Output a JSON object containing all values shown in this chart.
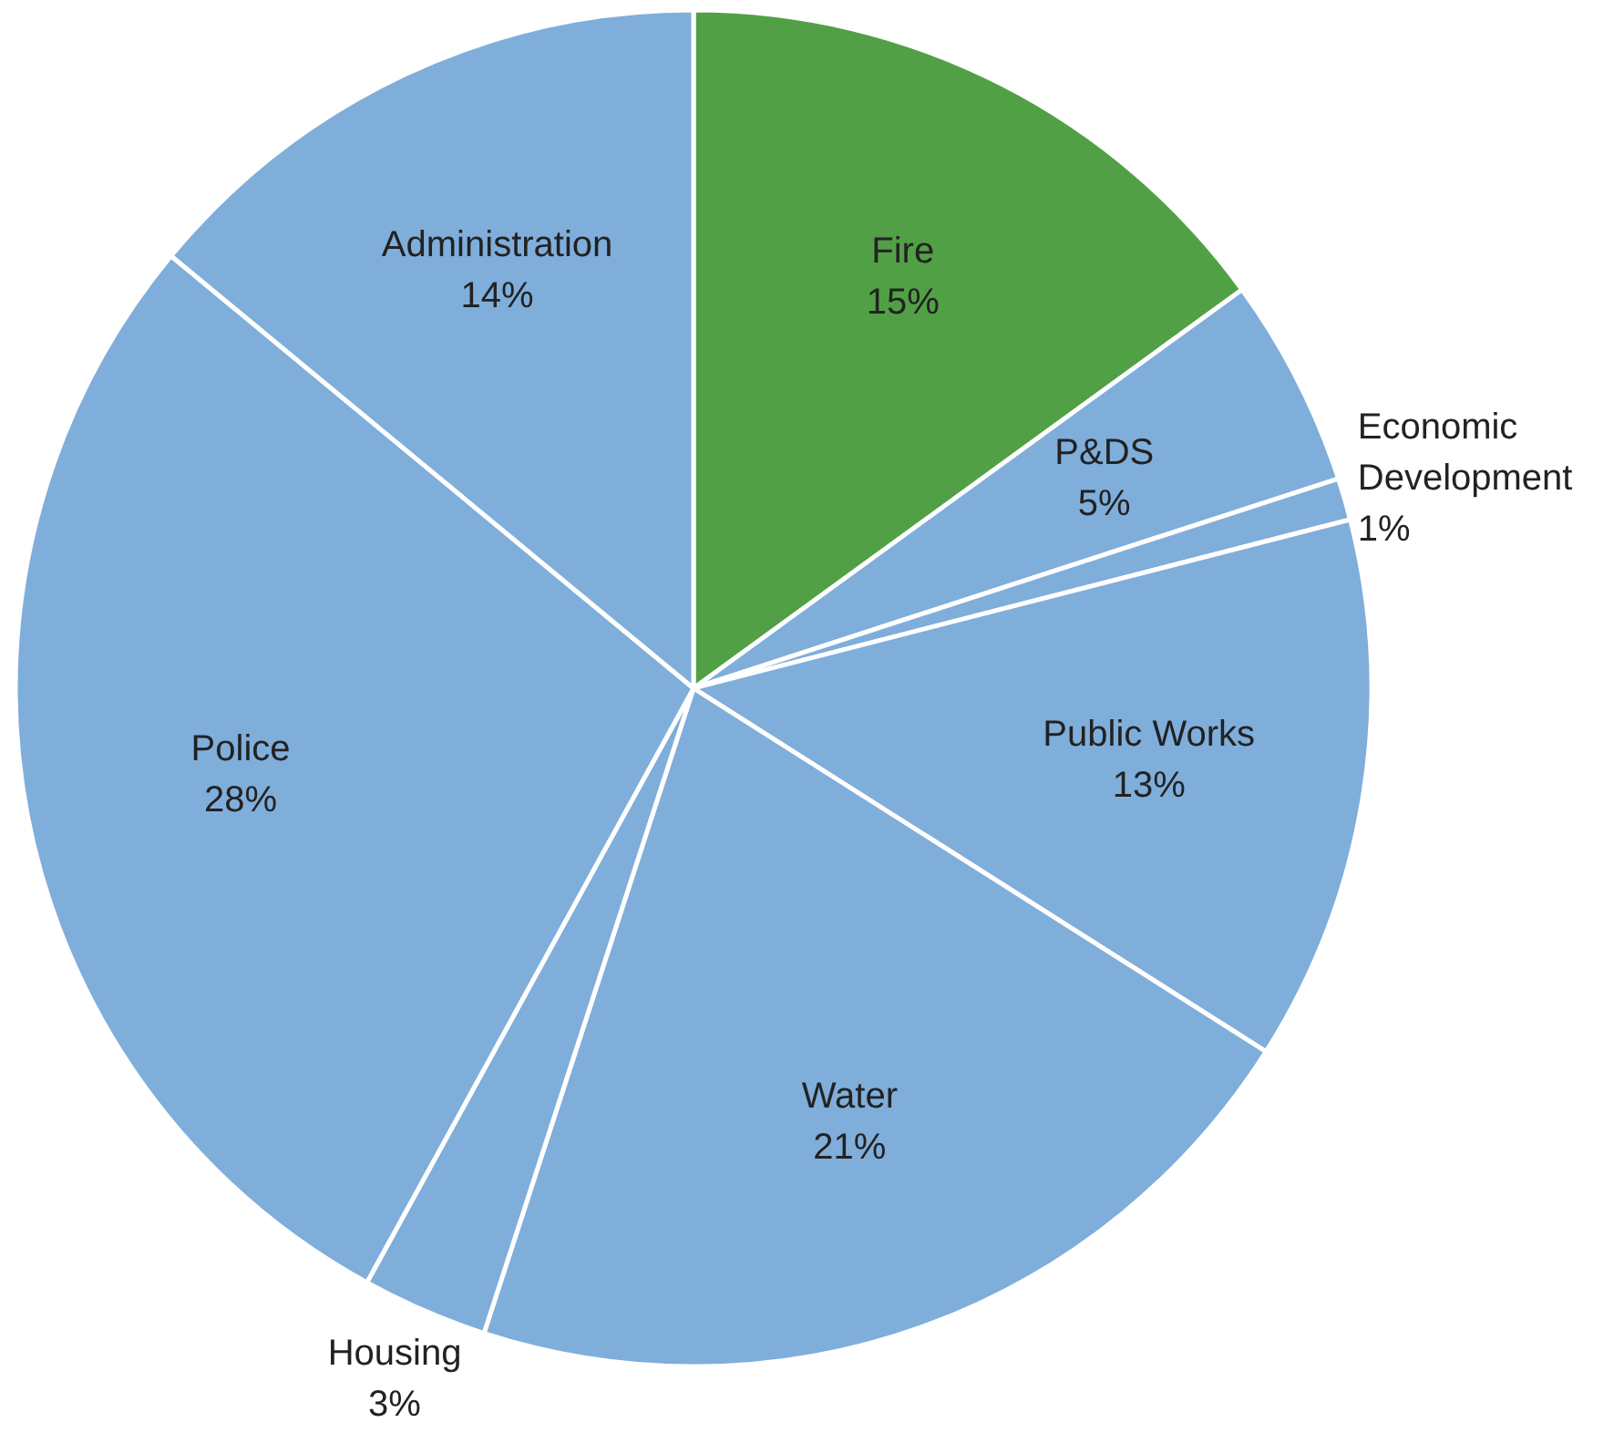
{
  "chart_data": {
    "type": "pie",
    "categories": [
      "Fire",
      "P&DS",
      "Economic Development",
      "Public Works",
      "Water",
      "Housing",
      "Police",
      "Administration"
    ],
    "values": [
      15,
      5,
      1,
      13,
      21,
      3,
      28,
      14
    ],
    "colors": [
      "#52a046",
      "#7faedb",
      "#7faedb",
      "#7faedb",
      "#7faedb",
      "#7faedb",
      "#7faedb",
      "#7faedb"
    ],
    "value_labels": [
      "15%",
      "5%",
      "1%",
      "13%",
      "21%",
      "3%",
      "28%",
      "14%"
    ]
  }
}
